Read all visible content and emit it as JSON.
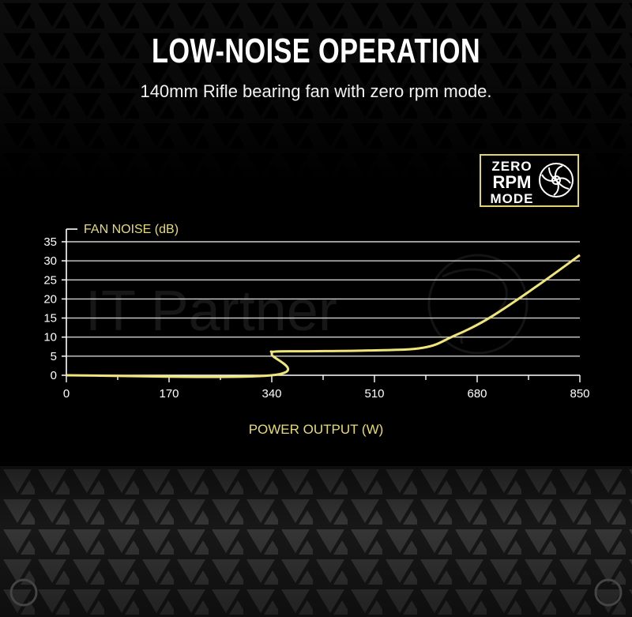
{
  "header": {
    "title": "LOW-NOISE OPERATION",
    "subtitle": "140mm Rifle bearing fan with zero rpm mode."
  },
  "badge": {
    "line1": "ZERO",
    "line2": "RPM",
    "line3": "MODE",
    "icon": "fan-icon",
    "border_color": "#e3d46a"
  },
  "watermark": {
    "text": "IT Partner"
  },
  "colors": {
    "accent": "#e8dc6e",
    "line": "#f0e57a",
    "grid": "#cfcfcf",
    "background": "#000000"
  },
  "chart_data": {
    "type": "line",
    "title": "",
    "ylabel": "FAN NOISE (dB)",
    "xlabel": "POWER OUTPUT (W)",
    "xlim": [
      0,
      850
    ],
    "ylim": [
      0,
      35
    ],
    "xticks": [
      0,
      170,
      340,
      510,
      680,
      850
    ],
    "yticks": [
      0,
      5,
      10,
      15,
      20,
      25,
      30,
      35
    ],
    "grid": "horizontal",
    "series": [
      {
        "x": [
          0,
          340,
          340,
          345,
          400,
          500,
          590,
          640,
          700,
          780,
          850
        ],
        "y": [
          0,
          0,
          5.5,
          6.2,
          6.3,
          6.5,
          7.2,
          10.2,
          15.0,
          23.5,
          31.5
        ]
      }
    ]
  }
}
